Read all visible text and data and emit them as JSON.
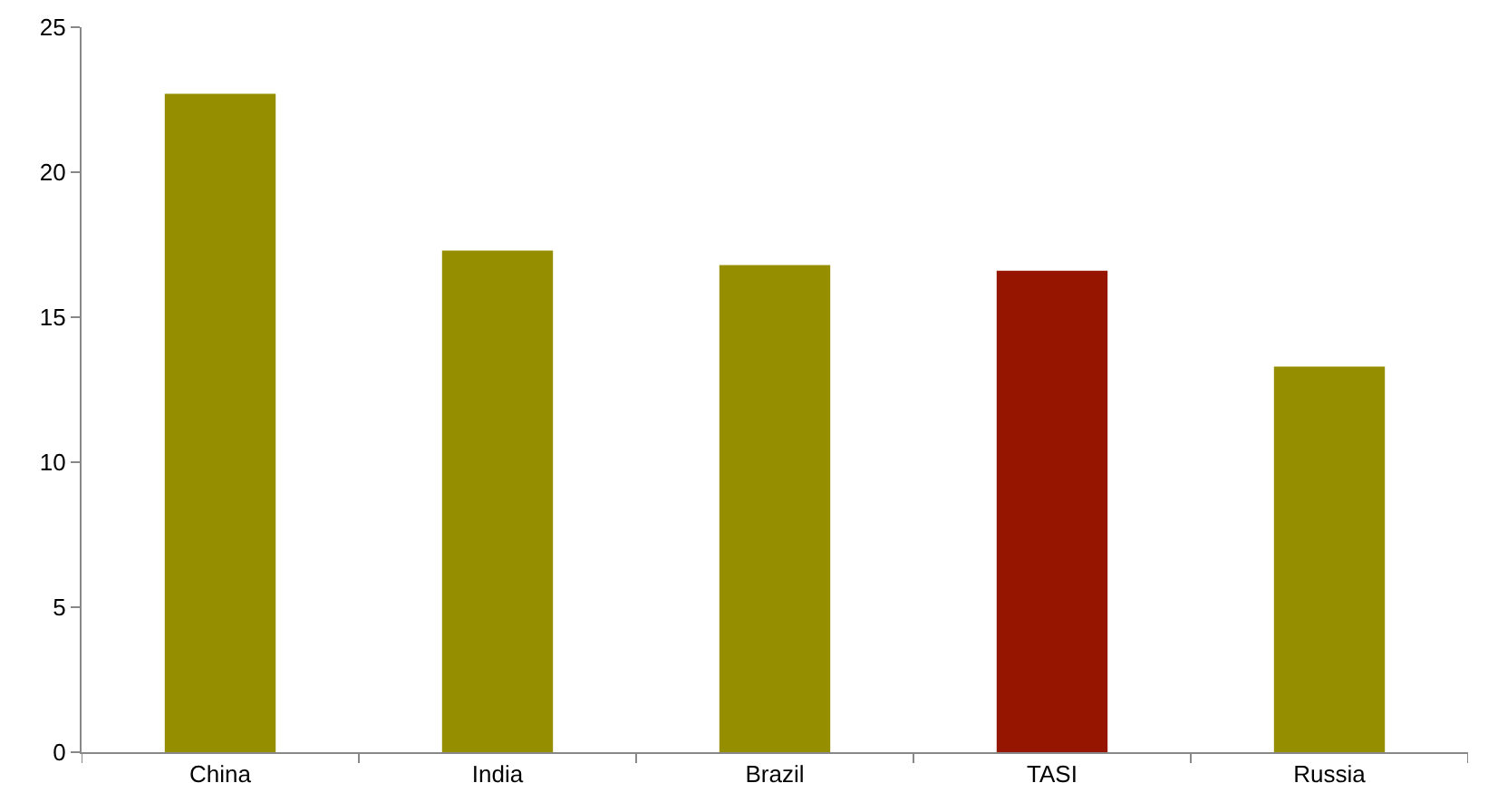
{
  "chart_data": {
    "type": "bar",
    "categories": [
      "China",
      "India",
      "Brazil",
      "TASI",
      "Russia"
    ],
    "values": [
      22.7,
      17.3,
      16.8,
      16.6,
      13.3
    ],
    "colors": [
      "#958f00",
      "#958f00",
      "#958f00",
      "#951500",
      "#958f00"
    ],
    "ylim": [
      0,
      25
    ],
    "yticks": [
      0,
      5,
      10,
      15,
      20,
      25
    ],
    "grid": false
  }
}
